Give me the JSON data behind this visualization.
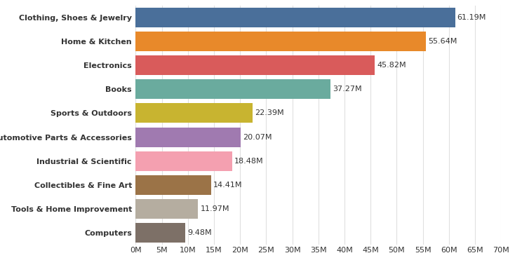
{
  "categories": [
    "Computers",
    "Tools & Home Improvement",
    "Collectibles & Fine Art",
    "Industrial & Scientific",
    "Automotive Parts & Accessories",
    "Sports & Outdoors",
    "Books",
    "Electronics",
    "Home & Kitchen",
    "Clothing, Shoes & Jewelry"
  ],
  "values": [
    9.48,
    11.97,
    14.41,
    18.48,
    20.07,
    22.39,
    37.27,
    45.82,
    55.64,
    61.19
  ],
  "colors": [
    "#7d7067",
    "#b5ada0",
    "#9b7347",
    "#f4a0b0",
    "#a07ab0",
    "#c8b430",
    "#6aab9e",
    "#d95b5b",
    "#e8892a",
    "#4a6f9a"
  ],
  "labels": [
    "9.48M",
    "11.97M",
    "14.41M",
    "18.48M",
    "20.07M",
    "22.39M",
    "37.27M",
    "45.82M",
    "55.64M",
    "61.19M"
  ],
  "xlim": [
    0,
    70
  ],
  "xticks": [
    0,
    5,
    10,
    15,
    20,
    25,
    30,
    35,
    40,
    45,
    50,
    55,
    60,
    65,
    70
  ],
  "xtick_labels": [
    "0M",
    "5M",
    "10M",
    "15M",
    "20M",
    "25M",
    "30M",
    "35M",
    "40M",
    "45M",
    "50M",
    "55M",
    "60M",
    "65M",
    "70M"
  ],
  "background_color": "#ffffff",
  "bar_height": 0.82,
  "label_fontsize": 8,
  "tick_fontsize": 8,
  "label_color": "#333333",
  "grid_color": "#e0e0e0"
}
